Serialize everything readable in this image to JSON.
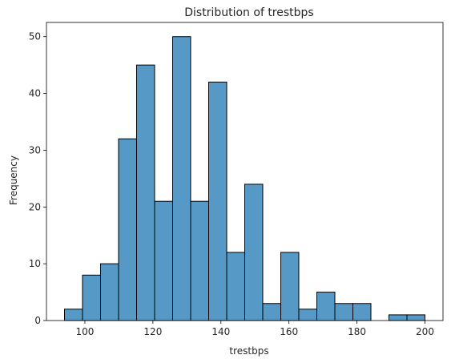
{
  "chart_data": {
    "type": "bar",
    "title": "Distribution of trestbps",
    "xlabel": "trestbps",
    "ylabel": "Frequency",
    "xlim": [
      88.7,
      205.3
    ],
    "ylim": [
      0,
      52.5
    ],
    "x_ticks": [
      100,
      120,
      140,
      160,
      180,
      200
    ],
    "y_ticks": [
      0,
      10,
      20,
      30,
      40,
      50
    ],
    "bar_color": "#5699c6",
    "edge_color": "#000000",
    "grid": false,
    "bins": [
      {
        "x0": 94.0,
        "x1": 99.3,
        "value": 2
      },
      {
        "x0": 99.3,
        "x1": 104.6,
        "value": 8
      },
      {
        "x0": 104.6,
        "x1": 109.9,
        "value": 10
      },
      {
        "x0": 109.9,
        "x1": 115.2,
        "value": 32
      },
      {
        "x0": 115.2,
        "x1": 120.5,
        "value": 45
      },
      {
        "x0": 120.5,
        "x1": 125.8,
        "value": 21
      },
      {
        "x0": 125.8,
        "x1": 131.1,
        "value": 50
      },
      {
        "x0": 131.1,
        "x1": 136.4,
        "value": 21
      },
      {
        "x0": 136.4,
        "x1": 141.7,
        "value": 42
      },
      {
        "x0": 141.7,
        "x1": 147.0,
        "value": 12
      },
      {
        "x0": 147.0,
        "x1": 152.3,
        "value": 24
      },
      {
        "x0": 152.3,
        "x1": 157.6,
        "value": 3
      },
      {
        "x0": 157.6,
        "x1": 162.9,
        "value": 12
      },
      {
        "x0": 162.9,
        "x1": 168.2,
        "value": 2
      },
      {
        "x0": 168.2,
        "x1": 173.5,
        "value": 5
      },
      {
        "x0": 173.5,
        "x1": 178.8,
        "value": 3
      },
      {
        "x0": 178.8,
        "x1": 184.1,
        "value": 3
      },
      {
        "x0": 184.1,
        "x1": 189.4,
        "value": 0
      },
      {
        "x0": 189.4,
        "x1": 194.7,
        "value": 1
      },
      {
        "x0": 194.7,
        "x1": 200.0,
        "value": 1
      }
    ]
  }
}
